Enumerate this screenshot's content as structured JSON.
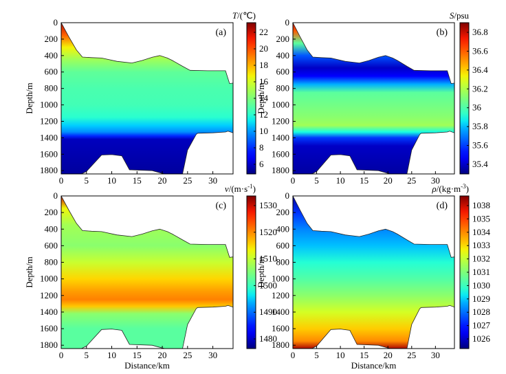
{
  "chart_data": [
    {
      "type": "heatmap",
      "panel_label": "(a)",
      "colorbar_title_var": "T",
      "colorbar_title_unit": "/(℃)",
      "x_ticks": [
        "0",
        "5",
        "10",
        "15",
        "20",
        "25",
        "30"
      ],
      "y_ticks": [
        "0",
        "200",
        "400",
        "600",
        "800",
        "1000",
        "1200",
        "1400",
        "1600",
        "1800"
      ],
      "ylabel": "Depth/m",
      "xlabel": "",
      "colorbar_ticks": [
        "22",
        "20",
        "18",
        "16",
        "14",
        "12",
        "10",
        "8",
        "6"
      ],
      "x_range_km": [
        0,
        34
      ],
      "depth_range_m": [
        0,
        1840
      ],
      "color_range": [
        5,
        23.5
      ],
      "profile": [
        [
          0,
          22.5
        ],
        [
          150,
          20
        ],
        [
          300,
          17
        ],
        [
          450,
          15
        ],
        [
          600,
          13.5
        ],
        [
          800,
          13
        ],
        [
          1000,
          12.8
        ],
        [
          1150,
          12.2
        ],
        [
          1250,
          11.2
        ],
        [
          1330,
          10
        ],
        [
          1380,
          8
        ],
        [
          1420,
          6
        ],
        [
          1840,
          5.5
        ]
      ]
    },
    {
      "type": "heatmap",
      "panel_label": "(b)",
      "colorbar_title_var": "S",
      "colorbar_title_unit": "/psu",
      "x_ticks": [
        "0",
        "5",
        "10",
        "15",
        "20",
        "25",
        "30"
      ],
      "y_ticks": [
        "0",
        "200",
        "400",
        "600",
        "800",
        "1000",
        "1200",
        "1400",
        "1600",
        "1800"
      ],
      "ylabel": "Depth/m",
      "xlabel": "",
      "colorbar_ticks": [
        "36.8",
        "36.6",
        "36.4",
        "36.2",
        "36",
        "35.8",
        "35.6",
        "35.4"
      ],
      "x_range_km": [
        0,
        34
      ],
      "depth_range_m": [
        0,
        1840
      ],
      "color_range": [
        35.25,
        36.9
      ],
      "profile": [
        [
          0,
          36.8
        ],
        [
          100,
          36.6
        ],
        [
          250,
          36.0
        ],
        [
          400,
          35.6
        ],
        [
          550,
          35.35
        ],
        [
          650,
          35.45
        ],
        [
          750,
          35.75
        ],
        [
          850,
          36.0
        ],
        [
          1000,
          36.05
        ],
        [
          1150,
          36.1
        ],
        [
          1250,
          36.15
        ],
        [
          1330,
          35.85
        ],
        [
          1400,
          35.55
        ],
        [
          1500,
          35.35
        ],
        [
          1840,
          35.3
        ]
      ]
    },
    {
      "type": "heatmap",
      "panel_label": "(c)",
      "colorbar_title_var": "v",
      "colorbar_title_unit": "/(m·s",
      "colorbar_title_sup": "-1",
      "colorbar_title_close": ")",
      "x_ticks": [
        "0",
        "5",
        "10",
        "15",
        "20",
        "25",
        "30"
      ],
      "y_ticks": [
        "0",
        "200",
        "400",
        "600",
        "800",
        "1000",
        "1200",
        "1400",
        "1600",
        "1800"
      ],
      "ylabel": "Depth/m",
      "xlabel": "Distance/km",
      "colorbar_ticks": [
        "1530",
        "1520",
        "1510",
        "1500",
        "1490",
        "1480"
      ],
      "x_range_km": [
        0,
        34
      ],
      "depth_range_m": [
        0,
        1840
      ],
      "color_range": [
        1472,
        1534
      ],
      "profile": [
        [
          0,
          1530
        ],
        [
          150,
          1512
        ],
        [
          350,
          1506
        ],
        [
          600,
          1504
        ],
        [
          800,
          1509
        ],
        [
          1000,
          1514
        ],
        [
          1150,
          1518
        ],
        [
          1250,
          1520
        ],
        [
          1330,
          1515
        ],
        [
          1420,
          1504
        ],
        [
          1600,
          1500
        ],
        [
          1840,
          1500
        ]
      ]
    },
    {
      "type": "heatmap",
      "panel_label": "(d)",
      "colorbar_title_var": "ρ",
      "colorbar_title_unit": "/(kg·m",
      "colorbar_title_sup": "-3",
      "colorbar_title_close": ")",
      "x_ticks": [
        "0",
        "5",
        "10",
        "15",
        "20",
        "25",
        "30"
      ],
      "y_ticks": [
        "0",
        "200",
        "400",
        "600",
        "800",
        "1000",
        "1200",
        "1400",
        "1600",
        "1800"
      ],
      "ylabel": "Depth/m",
      "xlabel": "Distance/km",
      "colorbar_ticks": [
        "1038",
        "1035",
        "1034",
        "1033",
        "1032",
        "1031",
        "1030",
        "1029",
        "1028",
        "1027",
        "1026"
      ],
      "x_range_km": [
        0,
        34
      ],
      "depth_range_m": [
        0,
        1840
      ],
      "color_range": [
        1025.2,
        1038.3
      ],
      "profile": [
        [
          0,
          1025.5
        ],
        [
          200,
          1027.5
        ],
        [
          400,
          1028.6
        ],
        [
          600,
          1029.4
        ],
        [
          800,
          1030.2
        ],
        [
          1000,
          1031.0
        ],
        [
          1200,
          1032.0
        ],
        [
          1400,
          1033.2
        ],
        [
          1600,
          1034.2
        ],
        [
          1750,
          1035.2
        ],
        [
          1840,
          1037.8
        ]
      ]
    }
  ],
  "colors": {
    "frame": "#000000",
    "background": "#ffffff"
  }
}
